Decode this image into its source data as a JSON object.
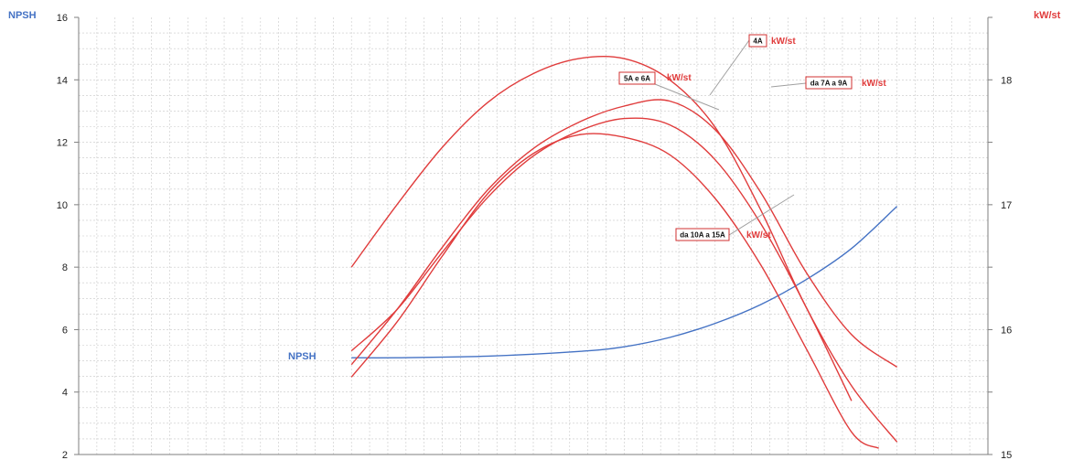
{
  "chart_data": {
    "type": "line",
    "left_axis": {
      "label": "NPSH",
      "ylim": [
        2,
        16
      ],
      "ticks": [
        2,
        4,
        6,
        8,
        10,
        12,
        14,
        16
      ],
      "color": "#4472c4"
    },
    "right_axis": {
      "label": "kW/st",
      "ylim": [
        15,
        18.5
      ],
      "ticks": [
        15,
        16,
        17,
        18
      ],
      "color": "#e03c3c"
    },
    "x_range": [
      0,
      100
    ],
    "grid": true,
    "series": [
      {
        "name": "NPSH",
        "axis": "left",
        "color": "#4472c4",
        "points": [
          [
            30,
            5.1
          ],
          [
            35,
            5.1
          ],
          [
            45,
            5.15
          ],
          [
            55,
            5.3
          ],
          [
            60,
            5.45
          ],
          [
            65,
            5.75
          ],
          [
            70,
            6.2
          ],
          [
            75,
            6.8
          ],
          [
            80,
            7.6
          ],
          [
            85,
            8.6
          ],
          [
            90,
            9.95
          ]
        ]
      },
      {
        "name": "4A",
        "axis": "right",
        "color": "#e03c3c",
        "points": [
          [
            30,
            16.5
          ],
          [
            35,
            17.0
          ],
          [
            40,
            17.46
          ],
          [
            45,
            17.82
          ],
          [
            50,
            18.05
          ],
          [
            55,
            18.17
          ],
          [
            60,
            18.17
          ],
          [
            65,
            18.0
          ],
          [
            70,
            17.62
          ],
          [
            75,
            16.96
          ],
          [
            80,
            16.18
          ],
          [
            85,
            15.55
          ],
          [
            90,
            15.1
          ]
        ]
      },
      {
        "name": "5A e 6A",
        "axis": "right",
        "color": "#e03c3c",
        "points": [
          [
            30,
            15.83
          ],
          [
            35,
            16.16
          ],
          [
            40,
            16.62
          ],
          [
            45,
            17.06
          ],
          [
            50,
            17.39
          ],
          [
            55,
            17.59
          ],
          [
            60,
            17.69
          ],
          [
            65,
            17.64
          ],
          [
            70,
            17.36
          ],
          [
            75,
            16.85
          ],
          [
            80,
            16.18
          ],
          [
            85,
            15.43
          ]
        ]
      },
      {
        "name": "da 7A a 9A",
        "axis": "right",
        "color": "#e03c3c",
        "points": [
          [
            30,
            15.72
          ],
          [
            35,
            16.16
          ],
          [
            40,
            16.66
          ],
          [
            45,
            17.12
          ],
          [
            50,
            17.45
          ],
          [
            55,
            17.66
          ],
          [
            60,
            17.79
          ],
          [
            65,
            17.83
          ],
          [
            70,
            17.6
          ],
          [
            75,
            17.1
          ],
          [
            80,
            16.46
          ],
          [
            85,
            15.96
          ],
          [
            90,
            15.7
          ]
        ]
      },
      {
        "name": "da 10A a 15A",
        "axis": "right",
        "color": "#e03c3c",
        "points": [
          [
            30,
            15.62
          ],
          [
            35,
            16.06
          ],
          [
            40,
            16.59
          ],
          [
            45,
            17.09
          ],
          [
            50,
            17.41
          ],
          [
            55,
            17.56
          ],
          [
            60,
            17.54
          ],
          [
            65,
            17.4
          ],
          [
            70,
            17.05
          ],
          [
            75,
            16.52
          ],
          [
            80,
            15.85
          ],
          [
            85,
            15.18
          ],
          [
            88,
            15.05
          ]
        ]
      }
    ],
    "annotations": [
      {
        "tag": "4A",
        "unit": "kW/st"
      },
      {
        "tag": "5A e 6A",
        "unit": "kW/st"
      },
      {
        "tag": "da 7A a 9A",
        "unit": "kW/st"
      },
      {
        "tag": "da 10A a 15A",
        "unit": "kW/st"
      },
      {
        "tag": "",
        "unit": "NPSH"
      }
    ]
  }
}
